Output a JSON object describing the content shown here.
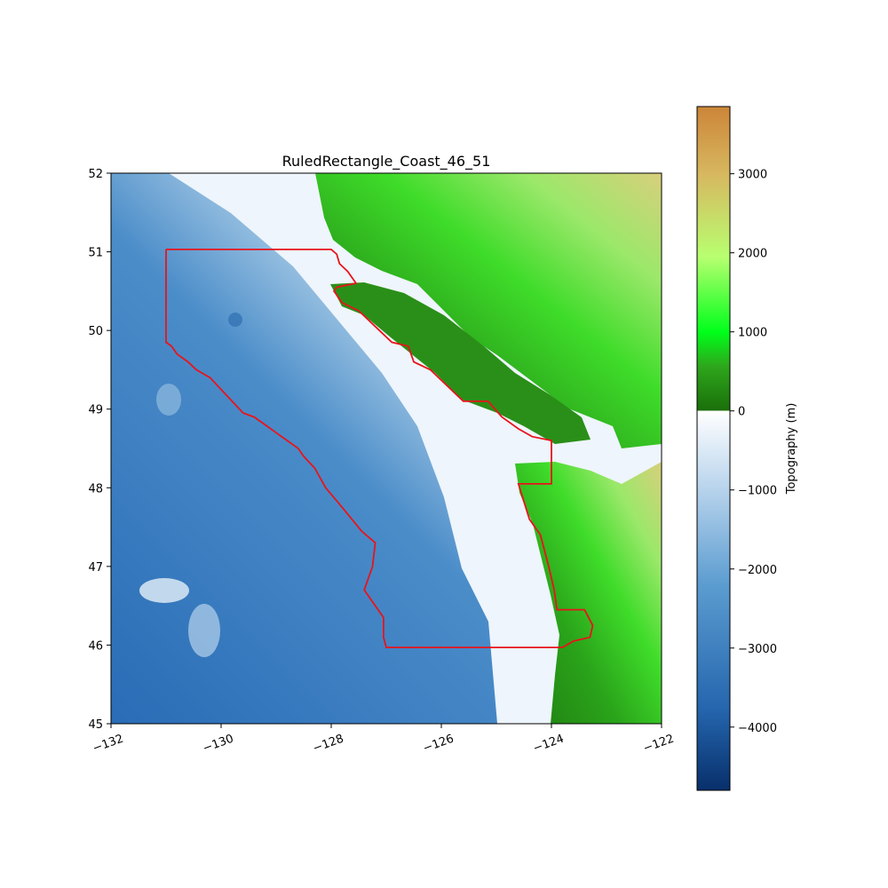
{
  "chart_data": {
    "type": "heatmap",
    "title": "RuledRectangle_Coast_46_51",
    "xlim": [
      -132,
      -122
    ],
    "ylim": [
      45,
      52
    ],
    "x_ticks": [
      "−132",
      "−130",
      "−128",
      "−126",
      "−124",
      "−122"
    ],
    "x_tick_values": [
      -132,
      -130,
      -128,
      -126,
      -124,
      -122
    ],
    "y_ticks": [
      "45",
      "46",
      "47",
      "48",
      "49",
      "50",
      "51",
      "52"
    ],
    "y_tick_values": [
      45,
      46,
      47,
      48,
      49,
      50,
      51,
      52
    ],
    "colorbar": {
      "label": "Topography (m)",
      "range": [
        -4800,
        3850
      ],
      "ticks": [
        "−4000",
        "−3000",
        "−2000",
        "−1000",
        "0",
        "1000",
        "2000",
        "3000"
      ],
      "tick_values": [
        -4000,
        -3000,
        -2000,
        -1000,
        0,
        1000,
        2000,
        3000
      ]
    },
    "ruled_rectangle": {
      "color": "#e8141b",
      "outline": [
        [
          -131.0,
          51.03
        ],
        [
          -128.0,
          51.03
        ],
        [
          -127.9,
          50.97
        ],
        [
          -127.85,
          50.85
        ],
        [
          -127.7,
          50.75
        ],
        [
          -127.55,
          50.6
        ],
        [
          -127.9,
          50.55
        ],
        [
          -127.95,
          50.5
        ],
        [
          -127.8,
          50.35
        ],
        [
          -127.5,
          50.25
        ],
        [
          -127.2,
          50.05
        ],
        [
          -126.9,
          49.85
        ],
        [
          -126.6,
          49.8
        ],
        [
          -126.5,
          49.6
        ],
        [
          -126.2,
          49.5
        ],
        [
          -125.9,
          49.3
        ],
        [
          -125.6,
          49.1
        ],
        [
          -125.15,
          49.1
        ],
        [
          -124.9,
          48.9
        ],
        [
          -124.6,
          48.75
        ],
        [
          -124.35,
          48.65
        ],
        [
          -124.0,
          48.6
        ],
        [
          -124.0,
          48.05
        ],
        [
          -124.6,
          48.05
        ],
        [
          -124.4,
          47.6
        ],
        [
          -124.2,
          47.4
        ],
        [
          -124.05,
          47.0
        ],
        [
          -123.95,
          46.7
        ],
        [
          -123.9,
          46.45
        ],
        [
          -123.4,
          46.45
        ],
        [
          -123.25,
          46.25
        ],
        [
          -123.3,
          46.1
        ],
        [
          -123.6,
          46.05
        ],
        [
          -123.8,
          45.97
        ],
        [
          -127.0,
          45.97
        ],
        [
          -127.05,
          46.1
        ],
        [
          -127.05,
          46.35
        ],
        [
          -127.25,
          46.55
        ],
        [
          -127.4,
          46.7
        ],
        [
          -127.25,
          47.0
        ],
        [
          -127.2,
          47.3
        ],
        [
          -127.45,
          47.45
        ],
        [
          -127.8,
          47.75
        ],
        [
          -128.1,
          48.0
        ],
        [
          -128.3,
          48.25
        ],
        [
          -128.5,
          48.4
        ],
        [
          -128.6,
          48.5
        ],
        [
          -128.8,
          48.6
        ],
        [
          -129.0,
          48.7
        ],
        [
          -129.2,
          48.8
        ],
        [
          -129.4,
          48.9
        ],
        [
          -129.6,
          48.95
        ],
        [
          -129.8,
          49.1
        ],
        [
          -130.0,
          49.25
        ],
        [
          -130.2,
          49.4
        ],
        [
          -130.45,
          49.5
        ],
        [
          -130.6,
          49.6
        ],
        [
          -130.8,
          49.7
        ],
        [
          -130.9,
          49.8
        ],
        [
          -131.0,
          49.85
        ],
        [
          -131.0,
          51.03
        ]
      ]
    }
  }
}
